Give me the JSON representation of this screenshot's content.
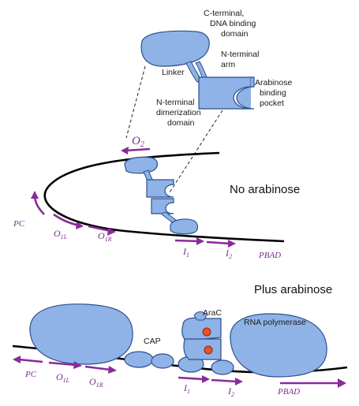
{
  "top": {
    "callouts": {
      "c_terminal": [
        "C-terminal,",
        "DNA binding",
        "domain"
      ],
      "n_terminal_arm": [
        "N-terminal",
        "arm"
      ],
      "linker": "Linker",
      "arabinose_pocket": [
        "Arabinose",
        "binding",
        "pocket"
      ],
      "n_dimerization": [
        "N-terminal",
        "dimerization",
        "domain"
      ]
    },
    "condition_label": "No arabinose",
    "sites": {
      "o2": "O",
      "o2_sub": "2",
      "pc": "PC",
      "o1l": "O",
      "o1l_sub": "1L",
      "o1r": "O",
      "o1r_sub": "1R",
      "i1": "I",
      "i1_sub": "1",
      "i2": "I",
      "i2_sub": "2",
      "pbad": "PBAD"
    }
  },
  "bottom": {
    "condition_label": "Plus arabinose",
    "labels": {
      "arac": "AraC",
      "cap": "CAP",
      "rna_polymerase": "RNA polymerase"
    },
    "sites": {
      "pc": "PC",
      "o1l": "O",
      "o1l_sub": "1L",
      "o1r": "O",
      "o1r_sub": "1R",
      "i1": "I",
      "i1_sub": "1",
      "i2": "I",
      "i2_sub": "2",
      "pbad": "PBAD"
    }
  },
  "colors": {
    "protein_fill": "#8fb3e6",
    "protein_stroke": "#2b4f8f",
    "site_arrows": "#8a2a9a",
    "arabinose_dot": "#e8512a"
  }
}
